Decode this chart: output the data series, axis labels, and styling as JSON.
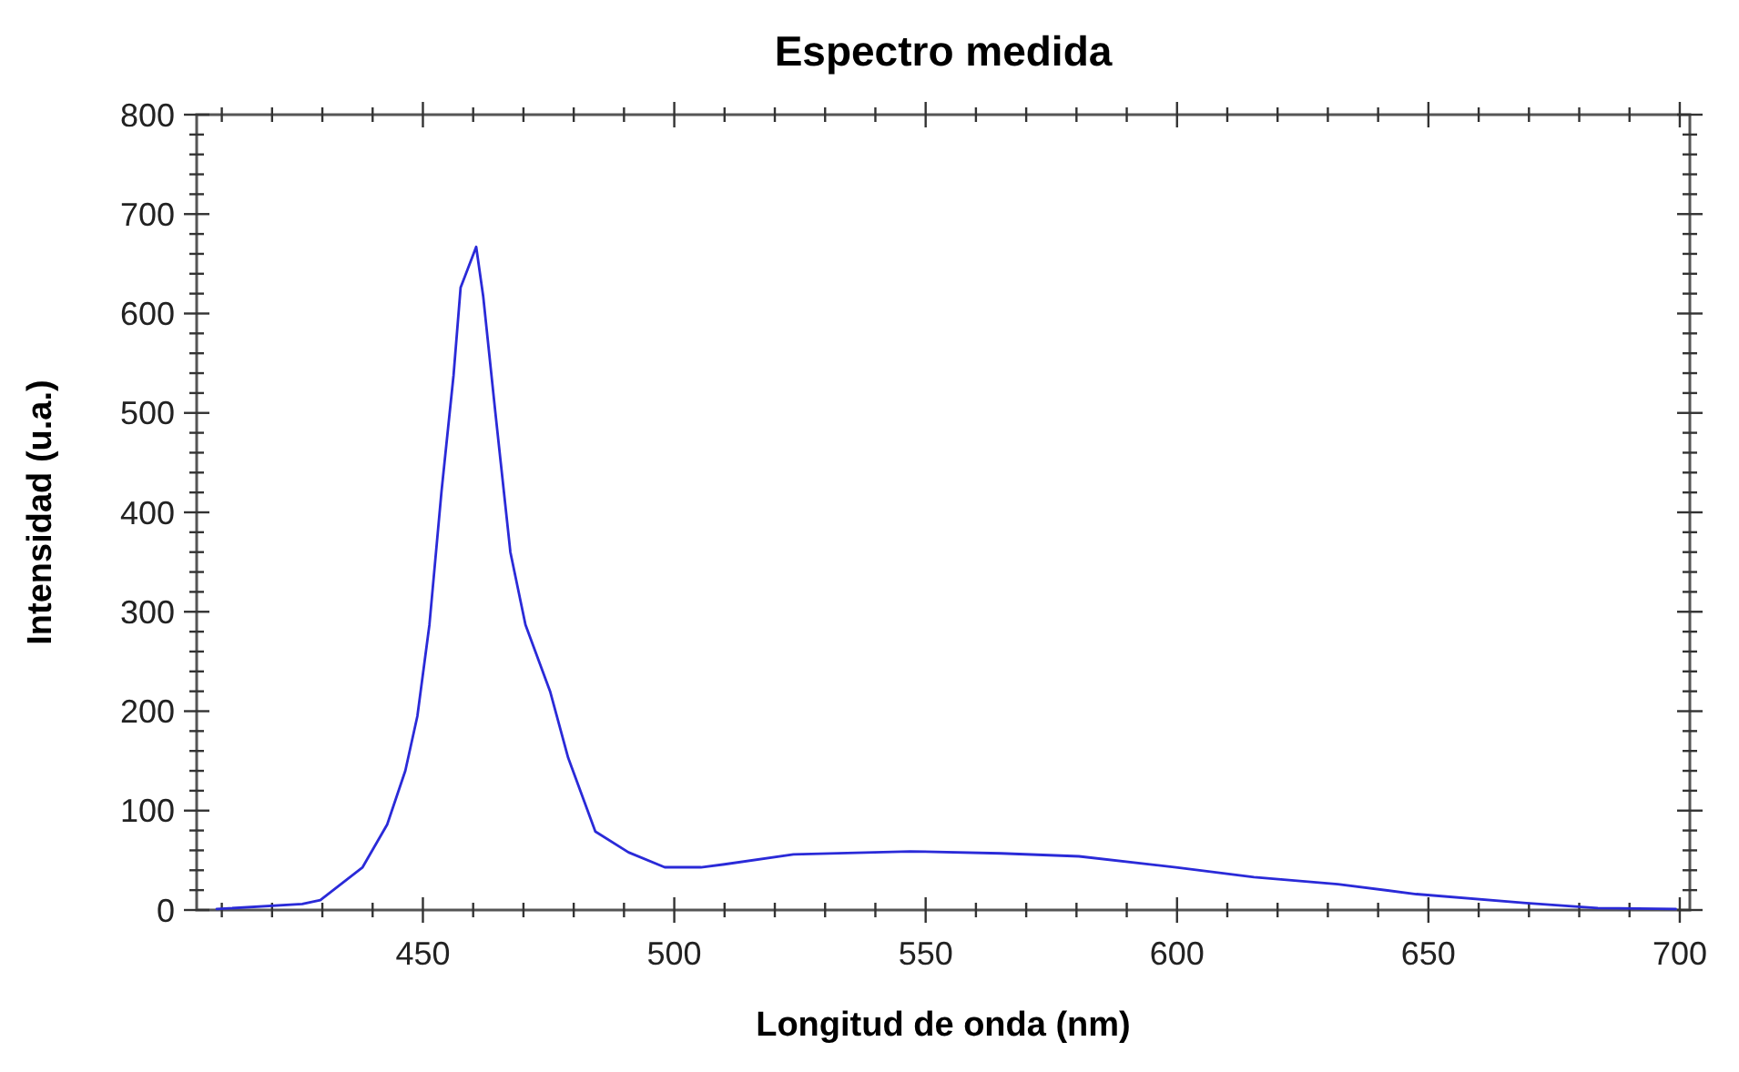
{
  "chart_data": {
    "type": "line",
    "title": "Espectro medida",
    "xlabel": "Longitud de onda (nm)",
    "ylabel": "Intensidad (u.a.)",
    "xlim": [
      405,
      702
    ],
    "ylim": [
      0,
      800
    ],
    "xticks": [
      {
        "value": 410,
        "label": null
      },
      {
        "value": 420,
        "label": null
      },
      {
        "value": 430,
        "label": null
      },
      {
        "value": 440,
        "label": null
      },
      450,
      {
        "value": 460,
        "label": null
      },
      {
        "value": 470,
        "label": null
      },
      {
        "value": 480,
        "label": null
      },
      {
        "value": 490,
        "label": null
      },
      500,
      {
        "value": 510,
        "label": null
      },
      {
        "value": 520,
        "label": null
      },
      {
        "value": 530,
        "label": null
      },
      {
        "value": 540,
        "label": null
      },
      550,
      {
        "value": 560,
        "label": null
      },
      {
        "value": 570,
        "label": null
      },
      {
        "value": 580,
        "label": null
      },
      {
        "value": 590,
        "label": null
      },
      600,
      {
        "value": 610,
        "label": null
      },
      {
        "value": 620,
        "label": null
      },
      {
        "value": 630,
        "label": null
      },
      {
        "value": 640,
        "label": null
      },
      650,
      {
        "value": 660,
        "label": null
      },
      {
        "value": 670,
        "label": null
      },
      {
        "value": 680,
        "label": null
      },
      {
        "value": 690,
        "label": null
      },
      700
    ],
    "yticks": [
      0,
      {
        "value": 20,
        "label": null
      },
      {
        "value": 40,
        "label": null
      },
      {
        "value": 60,
        "label": null
      },
      {
        "value": 80,
        "label": null
      },
      100,
      {
        "value": 120,
        "label": null
      },
      {
        "value": 140,
        "label": null
      },
      {
        "value": 160,
        "label": null
      },
      {
        "value": 180,
        "label": null
      },
      200,
      {
        "value": 220,
        "label": null
      },
      {
        "value": 240,
        "label": null
      },
      {
        "value": 260,
        "label": null
      },
      {
        "value": 280,
        "label": null
      },
      300,
      {
        "value": 320,
        "label": null
      },
      {
        "value": 340,
        "label": null
      },
      {
        "value": 360,
        "label": null
      },
      {
        "value": 380,
        "label": null
      },
      400,
      {
        "value": 420,
        "label": null
      },
      {
        "value": 440,
        "label": null
      },
      {
        "value": 460,
        "label": null
      },
      {
        "value": 480,
        "label": null
      },
      500,
      {
        "value": 520,
        "label": null
      },
      {
        "value": 540,
        "label": null
      },
      {
        "value": 560,
        "label": null
      },
      {
        "value": 580,
        "label": null
      },
      600,
      {
        "value": 620,
        "label": null
      },
      {
        "value": 640,
        "label": null
      },
      {
        "value": 660,
        "label": null
      },
      {
        "value": 680,
        "label": null
      },
      700,
      {
        "value": 720,
        "label": null
      },
      {
        "value": 740,
        "label": null
      },
      {
        "value": 760,
        "label": null
      },
      {
        "value": 780,
        "label": null
      },
      800
    ],
    "grid": false,
    "marker": "none",
    "line_style": "solid",
    "series": [
      {
        "color": "#2a2ad8",
        "x": [
          409,
          426,
          429.6,
          438,
          442.9,
          446.5,
          448.9,
          451.3,
          453.7,
          456.1,
          457.5,
          460.6,
          462,
          464.4,
          467.4,
          470.4,
          475.3,
          478.9,
          484.3,
          490.9,
          498.1,
          505.3,
          510,
          523.7,
          546.9,
          565,
          580.5,
          599.8,
          615.3,
          632,
          647.6,
          669.5,
          683.7,
          699.2
        ],
        "values": [
          1,
          6,
          10,
          43,
          86,
          140,
          195,
          287,
          421,
          538,
          626,
          667,
          617,
          501,
          360,
          287,
          220,
          153,
          79,
          58,
          43,
          43,
          46,
          56,
          59,
          57,
          54,
          43,
          33,
          26,
          16,
          7,
          2,
          1
        ]
      }
    ]
  }
}
